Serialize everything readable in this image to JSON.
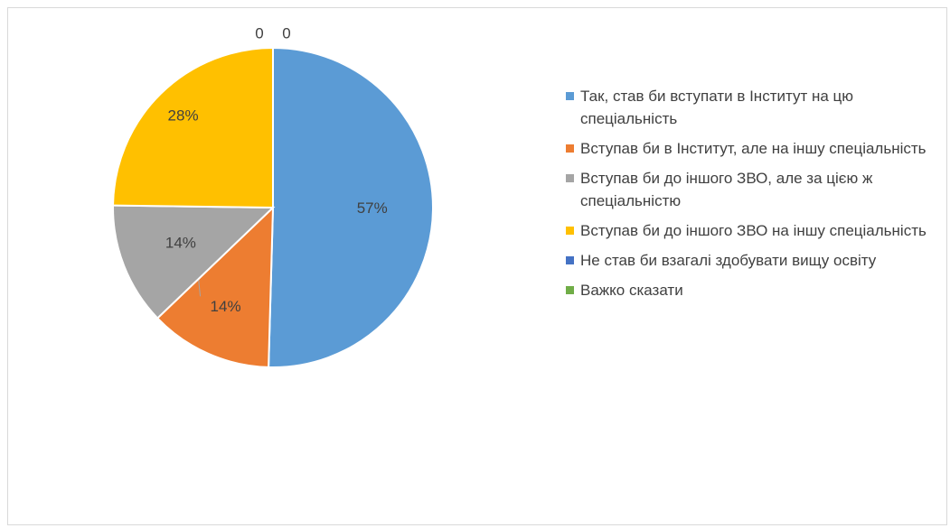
{
  "chart_data": {
    "type": "pie",
    "categories": [
      "Так, став би вступати в Інститут на цю спеціальність",
      "Вступав би в Інститут, але на іншу спеціальність",
      "Вступав би до іншого ЗВО, але за цією ж спеціальністю",
      "Вступав би до іншого ЗВО на іншу спеціальність",
      "Не став би взагалі здобувати вищу освіту",
      "Важко сказати"
    ],
    "values": [
      57,
      14,
      14,
      28,
      0,
      0
    ],
    "value_labels": [
      "57%",
      "14%",
      "14%",
      "28%",
      "0",
      "0"
    ],
    "colors": [
      "#5b9bd5",
      "#ed7d31",
      "#a5a5a5",
      "#ffc000",
      "#4472c4",
      "#70ad47"
    ],
    "legend": "right"
  }
}
